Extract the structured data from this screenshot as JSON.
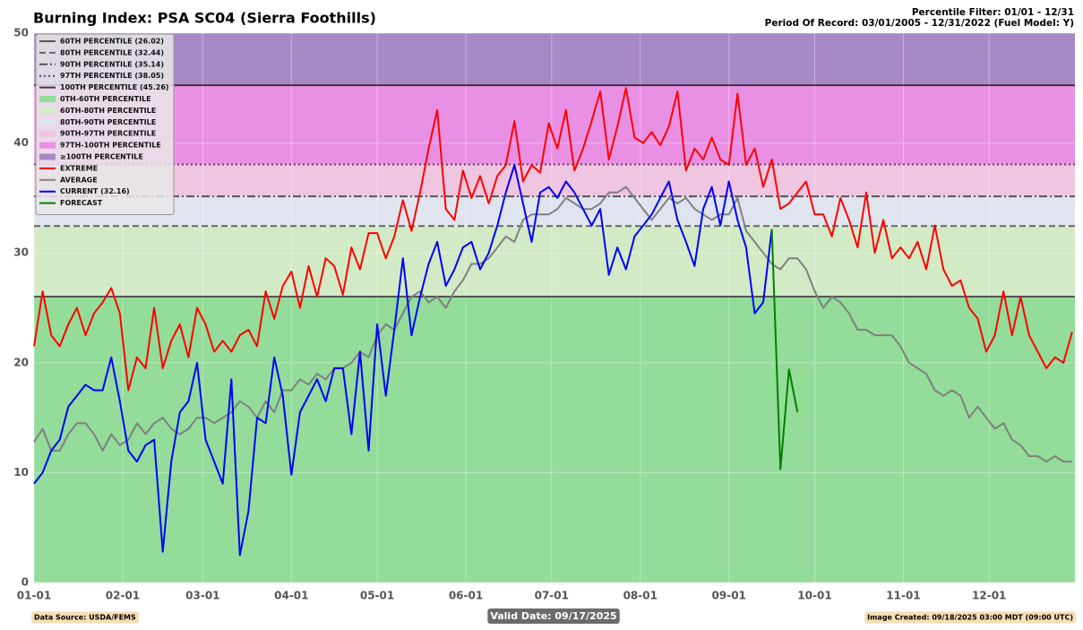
{
  "chart_data": {
    "type": "line",
    "title": "Burning Index: PSA SC04 (Sierra Foothills)",
    "header_right": [
      "Percentile Filter: 01/01 - 12/31",
      "Period Of Record: 03/01/2005 - 12/31/2022 (Fuel Model: Y)"
    ],
    "footer": {
      "left": "Data Source: USDA/FEMS",
      "center": "Valid Date: 09/17/2025",
      "right": "Image Created: 09/18/2025 03:00 MDT (09:00 UTC)"
    },
    "xlim": [
      1,
      365
    ],
    "xticks": [
      {
        "value": 1,
        "label": "01-01"
      },
      {
        "value": 32,
        "label": "02-01"
      },
      {
        "value": 60,
        "label": "03-01"
      },
      {
        "value": 91,
        "label": "04-01"
      },
      {
        "value": 121,
        "label": "05-01"
      },
      {
        "value": 152,
        "label": "06-01"
      },
      {
        "value": 182,
        "label": "07-01"
      },
      {
        "value": 213,
        "label": "08-01"
      },
      {
        "value": 244,
        "label": "09-01"
      },
      {
        "value": 274,
        "label": "10-01"
      },
      {
        "value": 305,
        "label": "11-01"
      },
      {
        "value": 335,
        "label": "12-01"
      }
    ],
    "ylim": [
      0,
      50
    ],
    "yticks": [
      0,
      10,
      20,
      30,
      40,
      50
    ],
    "grid": true,
    "legend": "upper left",
    "percentile_lines": [
      {
        "name": "60TH PERCENTILE (26.02)",
        "value": 26.02,
        "style": "solid",
        "color": "#555555"
      },
      {
        "name": "80TH PERCENTILE (32.44)",
        "value": 32.44,
        "style": "dashed",
        "color": "#666666"
      },
      {
        "name": "90TH PERCENTILE (35.14)",
        "value": 35.14,
        "style": "dashdot",
        "color": "#555555"
      },
      {
        "name": "97TH PERCENTILE (38.05)",
        "value": 38.05,
        "style": "dotted",
        "color": "#6b3a62"
      },
      {
        "name": "100TH PERCENTILE (45.26)",
        "value": 45.26,
        "style": "solid",
        "color": "#4a2d4a"
      }
    ],
    "bands": [
      {
        "name": "0TH-60TH PERCENTILE",
        "color": "#93dc99"
      },
      {
        "name": "60TH-80TH PERCENTILE",
        "color": "#d3eac6"
      },
      {
        "name": "80TH-90TH PERCENTILE",
        "color": "#e0e4ee"
      },
      {
        "name": "90TH-97TH PERCENTILE",
        "color": "#efc5e0"
      },
      {
        "name": "97TH-100TH PERCENTILE",
        "color": "#ea90e4"
      },
      {
        "name": "≥100TH PERCENTILE",
        "color": "#a889c7"
      }
    ],
    "x": [
      1,
      4,
      7,
      10,
      13,
      16,
      19,
      22,
      25,
      28,
      31,
      34,
      37,
      40,
      43,
      46,
      49,
      52,
      55,
      58,
      61,
      64,
      67,
      70,
      73,
      76,
      79,
      82,
      85,
      88,
      91,
      94,
      97,
      100,
      103,
      106,
      109,
      112,
      115,
      118,
      121,
      124,
      127,
      130,
      133,
      136,
      139,
      142,
      145,
      148,
      151,
      154,
      157,
      160,
      163,
      166,
      169,
      172,
      175,
      178,
      181,
      184,
      187,
      190,
      193,
      196,
      199,
      202,
      205,
      208,
      211,
      214,
      217,
      220,
      223,
      226,
      229,
      232,
      235,
      238,
      241,
      244,
      247,
      250,
      253,
      256,
      259,
      262,
      265,
      268,
      271,
      274,
      277,
      280,
      283,
      286,
      289,
      292,
      295,
      298,
      301,
      304,
      307,
      310,
      313,
      316,
      319,
      322,
      325,
      328,
      331,
      334,
      337,
      340,
      343,
      346,
      349,
      352,
      355,
      358,
      361,
      364
    ],
    "series": [
      {
        "name": "EXTREME",
        "color": "#ff0000",
        "values": [
          21.5,
          26.5,
          22.5,
          21.5,
          23.5,
          25,
          22.5,
          24.5,
          25.5,
          26.8,
          24.5,
          17.5,
          20.5,
          19.5,
          25,
          19.5,
          22,
          23.5,
          20.5,
          25,
          23.5,
          21,
          22,
          21,
          22.5,
          23,
          21.5,
          26.5,
          24,
          27,
          28.3,
          25,
          28.8,
          26,
          29.5,
          28.8,
          26.2,
          30.5,
          28.5,
          31.8,
          31.8,
          29.5,
          31.5,
          34.8,
          32,
          35.5,
          39.5,
          43,
          34,
          33,
          37.5,
          35,
          37,
          34.5,
          37,
          38,
          42,
          36.5,
          38,
          37.3,
          41.8,
          39.5,
          43,
          37.5,
          39.5,
          42,
          44.7,
          38.5,
          41.5,
          45,
          40.5,
          40,
          41,
          39.8,
          41.5,
          44.7,
          37.5,
          39.5,
          38.5,
          40.5,
          38.5,
          38,
          44.5,
          38,
          39.5,
          36,
          38.5,
          34,
          34.5,
          35.5,
          36.5,
          33.5,
          33.5,
          31.5,
          35,
          33,
          30.5,
          35.5,
          30,
          33,
          29.5,
          30.5,
          29.5,
          31,
          28.5,
          32.5,
          28.5,
          27,
          27.5,
          25,
          24,
          21,
          22.5,
          26.5,
          22.5,
          26,
          22.5,
          21,
          19.5,
          20.5,
          20,
          22.8
        ]
      },
      {
        "name": "AVERAGE",
        "color": "#808080",
        "values": [
          12.8,
          14,
          12,
          12,
          13.5,
          14.5,
          14.5,
          13.5,
          12,
          13.5,
          12.5,
          13,
          14.5,
          13.5,
          14.5,
          15,
          14,
          13.5,
          14,
          15,
          15,
          14.5,
          15,
          15.5,
          16.5,
          16,
          15,
          16.5,
          15.5,
          17.5,
          17.5,
          18.5,
          18,
          19,
          18.5,
          19.5,
          19.5,
          20,
          21,
          20.5,
          22.5,
          23.5,
          23,
          24.5,
          26,
          26.5,
          25.5,
          26,
          25,
          26.5,
          27.5,
          29,
          29,
          29.5,
          30.5,
          31.5,
          31,
          33,
          33.5,
          33.5,
          33.5,
          34,
          35,
          34.5,
          34,
          34,
          34.5,
          35.5,
          35.5,
          36,
          35,
          34,
          33,
          34,
          35,
          34.5,
          35,
          34,
          33.5,
          33,
          33.5,
          33.5,
          35,
          32,
          31,
          30,
          29,
          28.5,
          29.5,
          29.5,
          28.5,
          26.5,
          25,
          26,
          25.5,
          24.5,
          23,
          23,
          22.5,
          22.5,
          22.5,
          21.5,
          20,
          19.5,
          19,
          17.5,
          17,
          17.5,
          17,
          15,
          16,
          15,
          14,
          14.5,
          13,
          12.5,
          11.5,
          11.5,
          11,
          11.5,
          11,
          11
        ]
      },
      {
        "name": "CURRENT (32.16)",
        "color": "#0000ff",
        "values": [
          9,
          10,
          12,
          13,
          16,
          17,
          18,
          17.5,
          17.5,
          20.5,
          16.5,
          12,
          11,
          12.5,
          13,
          2.8,
          11,
          15.5,
          16.5,
          20,
          13,
          11,
          9,
          18.5,
          2.5,
          6.5,
          15,
          14.5,
          20.5,
          17,
          9.8,
          15.5,
          17,
          18.5,
          16.5,
          19.5,
          19.5,
          13.5,
          21,
          12,
          23.5,
          17,
          23,
          29.5,
          22.5,
          26,
          29,
          31,
          27,
          28.5,
          30.5,
          31,
          28.5,
          30,
          32.5,
          35.5,
          38,
          34.5,
          31,
          35.5,
          36,
          35,
          36.5,
          35.5,
          34,
          32.5,
          34,
          28,
          30.5,
          28.5,
          31.5,
          32.5,
          33.5,
          35,
          36.5,
          33,
          31,
          28.8,
          34,
          36,
          32.5,
          36.5,
          33,
          30.5,
          24.5,
          25.5,
          32.16,
          null,
          null,
          null,
          null,
          null,
          null,
          null,
          null,
          null,
          null,
          null,
          null,
          null,
          null,
          null,
          null,
          null,
          null,
          null,
          null,
          null,
          null,
          null,
          null,
          null,
          null,
          null,
          null,
          null,
          null,
          null,
          null,
          null,
          null,
          null
        ]
      },
      {
        "name": "FORECAST",
        "color": "#008000",
        "values": [
          null,
          null,
          null,
          null,
          null,
          null,
          null,
          null,
          null,
          null,
          null,
          null,
          null,
          null,
          null,
          null,
          null,
          null,
          null,
          null,
          null,
          null,
          null,
          null,
          null,
          null,
          null,
          null,
          null,
          null,
          null,
          null,
          null,
          null,
          null,
          null,
          null,
          null,
          null,
          null,
          null,
          null,
          null,
          null,
          null,
          null,
          null,
          null,
          null,
          null,
          null,
          null,
          null,
          null,
          null,
          null,
          null,
          null,
          null,
          null,
          null,
          null,
          null,
          null,
          null,
          null,
          null,
          null,
          null,
          null,
          null,
          null,
          null,
          null,
          null,
          null,
          null,
          null,
          null,
          null,
          null,
          null,
          null,
          null,
          null,
          null,
          32.16,
          10.3,
          19.4,
          15.5,
          null,
          null,
          null,
          null,
          null,
          null,
          null,
          null,
          null,
          null,
          null,
          null,
          null,
          null,
          null,
          null,
          null,
          null,
          null,
          null,
          null,
          null,
          null,
          null,
          null,
          null,
          null,
          null,
          null,
          null,
          null,
          null
        ]
      }
    ]
  }
}
